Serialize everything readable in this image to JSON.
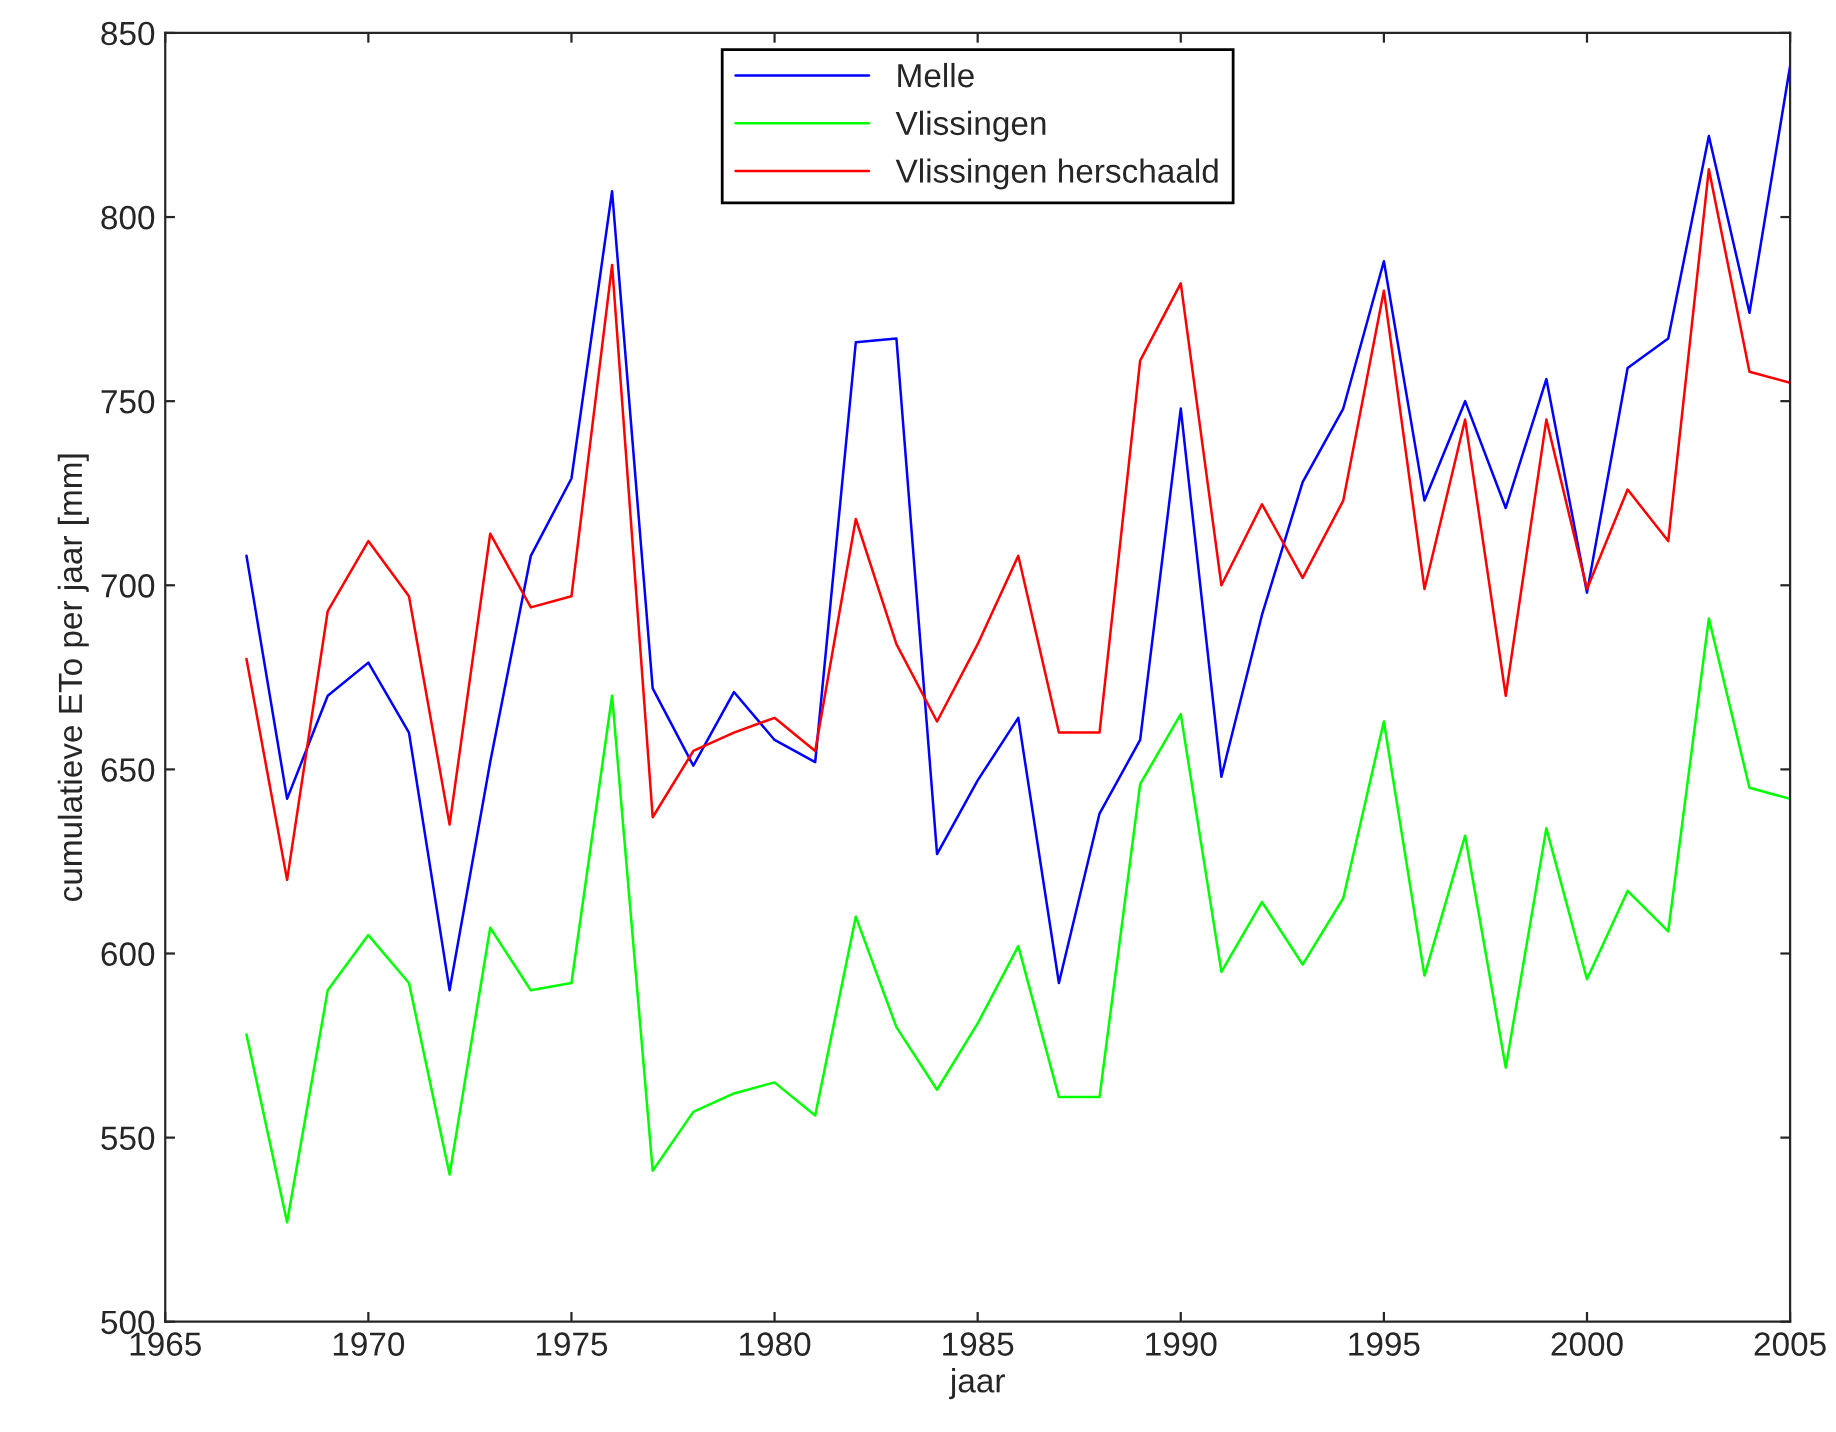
{
  "chart_data": {
    "type": "line",
    "xlabel": "jaar",
    "ylabel": "cumulatieve ETo per jaar [mm]",
    "x": [
      1967,
      1968,
      1969,
      1970,
      1971,
      1972,
      1973,
      1974,
      1975,
      1976,
      1977,
      1978,
      1979,
      1980,
      1981,
      1982,
      1983,
      1984,
      1985,
      1986,
      1987,
      1988,
      1989,
      1990,
      1991,
      1992,
      1993,
      1994,
      1995,
      1996,
      1997,
      1998,
      1999,
      2000,
      2001,
      2002,
      2003,
      2004,
      2005
    ],
    "series": [
      {
        "name": "Melle",
        "color": "#0000ff",
        "values": [
          708,
          642,
          670,
          679,
          660,
          590,
          652,
          708,
          729,
          807,
          672,
          651,
          671,
          658,
          652,
          766,
          767,
          627,
          647,
          664,
          592,
          638,
          658,
          748,
          648,
          692,
          728,
          748,
          788,
          723,
          750,
          721,
          756,
          698,
          759,
          767,
          822,
          774,
          841
        ]
      },
      {
        "name": "Vlissingen",
        "color": "#00ff00",
        "values": [
          578,
          527,
          590,
          605,
          592,
          540,
          607,
          590,
          592,
          670,
          541,
          557,
          562,
          565,
          556,
          610,
          580,
          563,
          581,
          602,
          561,
          561,
          646,
          665,
          595,
          614,
          597,
          615,
          663,
          594,
          632,
          569,
          634,
          593,
          617,
          606,
          691,
          645,
          642
        ]
      },
      {
        "name": "Vlissingen herschaald",
        "color": "#ff0000",
        "values": [
          680,
          620,
          693,
          712,
          697,
          635,
          714,
          694,
          697,
          787,
          637,
          655,
          660,
          664,
          655,
          718,
          684,
          663,
          684,
          708,
          660,
          660,
          761,
          782,
          700,
          722,
          702,
          723,
          780,
          699,
          745,
          670,
          745,
          699,
          726,
          712,
          813,
          758,
          755
        ]
      }
    ],
    "xlim": [
      1965,
      2005
    ],
    "xticks": [
      1965,
      1970,
      1975,
      1980,
      1985,
      1990,
      1995,
      2000,
      2005
    ],
    "ylim": [
      500,
      850
    ],
    "yticks": [
      500,
      550,
      600,
      650,
      700,
      750,
      800,
      850
    ],
    "grid": false,
    "legend": "top",
    "marker": "none",
    "line_style": "solid"
  }
}
